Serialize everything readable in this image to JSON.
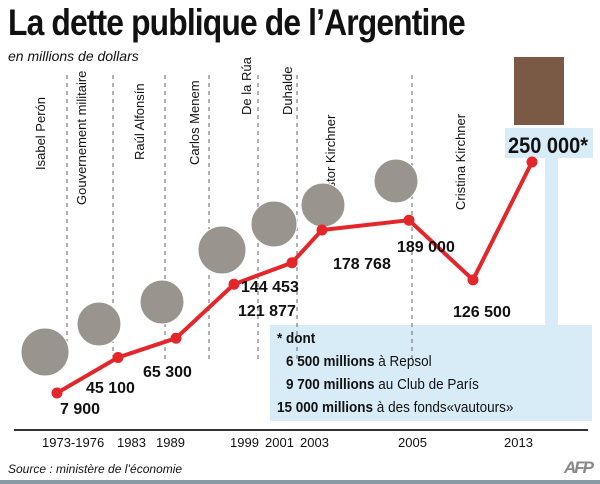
{
  "title": "La dette publique de l’Argentine",
  "subtitle": "en millions de dollars",
  "source": "Source : ministère de l’économie",
  "logo": "AFP",
  "colors": {
    "line": "#e3262a",
    "note_bg": "#d8ecf8",
    "text": "#111111"
  },
  "chart_data": {
    "type": "line",
    "title": "La dette publique de l’Argentine",
    "ylabel": "en millions de dollars",
    "ylim": [
      0,
      250000
    ],
    "grid": false,
    "x": [
      "1973-1976",
      "1983",
      "1989",
      "1999",
      "2001",
      "2003",
      "2005",
      "",
      "2013"
    ],
    "values": [
      7900,
      45100,
      65300,
      121877,
      144453,
      178768,
      189000,
      126500,
      250000
    ],
    "data_labels": [
      "7 900",
      "45 100",
      "65 300",
      "121 877",
      "144 453",
      "178 768",
      "189 000",
      "126 500",
      "250 000*"
    ],
    "tick_labels": [
      "1973-1976",
      "1983",
      "1989",
      "1999",
      "2001",
      "2003",
      "2005",
      "2013"
    ],
    "presidents": [
      "Isabel Perón",
      "Gouvernement militaire",
      "Raúl Alfonsín",
      "Carlos Menem",
      "De la Rúa",
      "Duhalde",
      "Néstor Kirchner",
      "Cristina Kirchner"
    ]
  },
  "note": {
    "heading": "* dont",
    "items": [
      {
        "amount": "6 500 millions",
        "text": " à  Repsol"
      },
      {
        "amount": "9 700 millions",
        "text": "  au Club de París"
      },
      {
        "amount": "15 000 millions",
        "text": " à des fonds«vautours»"
      }
    ]
  }
}
